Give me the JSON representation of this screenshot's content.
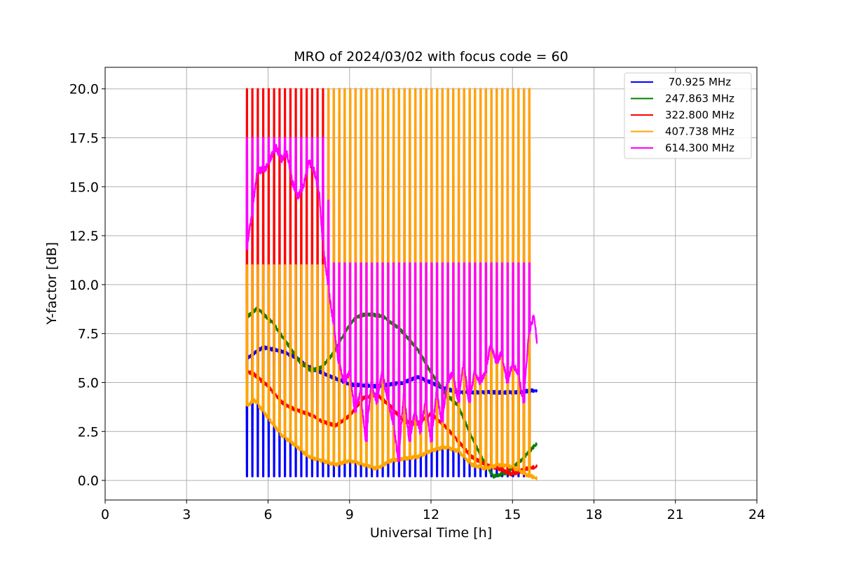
{
  "chart_data": {
    "type": "line",
    "title": "MRO of 2024/03/02 with focus code = 60",
    "xlabel": "Universal Time [h]",
    "ylabel": "Y-factor [dB]",
    "xlim": [
      0,
      24
    ],
    "ylim": [
      -1,
      21.1
    ],
    "x_ticks": [
      0,
      3,
      6,
      9,
      12,
      15,
      18,
      21,
      24
    ],
    "y_ticks": [
      0.0,
      2.5,
      5.0,
      7.5,
      10.0,
      12.5,
      15.0,
      17.5,
      20.0
    ],
    "grid": true,
    "legend_position": "top-right",
    "x_data_range": [
      5.2,
      15.9
    ],
    "switching_period_h": 0.2,
    "series": [
      {
        "name": " 70.925 MHz",
        "color": "#0000ff",
        "baseline": [
          [
            5.2,
            6.2
          ],
          [
            5.8,
            6.8
          ],
          [
            6.5,
            6.6
          ],
          [
            7.0,
            6.3
          ],
          [
            7.5,
            5.8
          ],
          [
            8.0,
            5.5
          ],
          [
            8.5,
            5.2
          ],
          [
            9.0,
            4.9
          ],
          [
            10.0,
            4.8
          ],
          [
            11.0,
            5.0
          ],
          [
            11.5,
            5.3
          ],
          [
            12.0,
            5.0
          ],
          [
            12.5,
            4.7
          ],
          [
            13.0,
            4.5
          ],
          [
            14.0,
            4.5
          ],
          [
            15.0,
            4.5
          ],
          [
            15.9,
            4.6
          ]
        ],
        "spike_low": 0.2,
        "spike_high": null
      },
      {
        "name": "247.863 MHz",
        "color": "#008000",
        "baseline": [
          [
            5.2,
            8.3
          ],
          [
            5.6,
            8.8
          ],
          [
            6.2,
            8.0
          ],
          [
            6.8,
            6.8
          ],
          [
            7.2,
            6.0
          ],
          [
            7.6,
            5.6
          ],
          [
            8.0,
            5.8
          ],
          [
            8.4,
            6.5
          ],
          [
            8.8,
            7.5
          ],
          [
            9.2,
            8.3
          ],
          [
            9.6,
            8.5
          ],
          [
            10.2,
            8.4
          ],
          [
            10.8,
            7.8
          ],
          [
            11.2,
            7.2
          ],
          [
            11.6,
            6.5
          ],
          [
            12.0,
            5.5
          ],
          [
            12.5,
            4.5
          ],
          [
            13.0,
            3.8
          ],
          [
            13.5,
            2.2
          ],
          [
            14.0,
            0.8
          ],
          [
            14.3,
            0.2
          ],
          [
            14.8,
            0.4
          ],
          [
            15.3,
            1.0
          ],
          [
            15.9,
            1.9
          ]
        ],
        "spike_low": null,
        "spike_high": null
      },
      {
        "name": "322.800 MHz",
        "color": "#ff0000",
        "baseline": [
          [
            5.2,
            5.6
          ],
          [
            5.5,
            5.4
          ],
          [
            6.0,
            4.8
          ],
          [
            6.5,
            4.0
          ],
          [
            7.0,
            3.6
          ],
          [
            7.5,
            3.4
          ],
          [
            8.0,
            3.0
          ],
          [
            8.5,
            2.8
          ],
          [
            9.0,
            3.3
          ],
          [
            9.5,
            4.2
          ],
          [
            10.0,
            4.4
          ],
          [
            10.5,
            3.8
          ],
          [
            11.0,
            3.0
          ],
          [
            11.5,
            2.9
          ],
          [
            12.0,
            3.4
          ],
          [
            12.5,
            2.8
          ],
          [
            13.0,
            2.0
          ],
          [
            13.5,
            1.2
          ],
          [
            14.0,
            0.8
          ],
          [
            14.5,
            0.6
          ],
          [
            15.0,
            0.3
          ],
          [
            15.5,
            0.6
          ],
          [
            15.9,
            0.7
          ]
        ],
        "spike_low": null,
        "spike_high": 20.0
      },
      {
        "name": "407.738 MHz",
        "color": "#ffa500",
        "baseline": [
          [
            5.2,
            3.8
          ],
          [
            5.5,
            4.1
          ],
          [
            6.0,
            3.2
          ],
          [
            6.5,
            2.3
          ],
          [
            7.0,
            1.8
          ],
          [
            7.5,
            1.2
          ],
          [
            8.0,
            1.0
          ],
          [
            8.5,
            0.8
          ],
          [
            9.0,
            1.0
          ],
          [
            9.5,
            0.8
          ],
          [
            10.0,
            0.6
          ],
          [
            10.5,
            1.0
          ],
          [
            11.0,
            1.1
          ],
          [
            11.5,
            1.2
          ],
          [
            12.0,
            1.5
          ],
          [
            12.5,
            1.7
          ],
          [
            13.0,
            1.5
          ],
          [
            13.5,
            0.8
          ],
          [
            14.0,
            0.6
          ],
          [
            14.5,
            0.8
          ],
          [
            15.0,
            0.7
          ],
          [
            15.5,
            0.3
          ],
          [
            15.9,
            0.1
          ]
        ],
        "spike_low": null,
        "spike_high_schedule": [
          [
            5.2,
            11.0
          ],
          [
            8.0,
            11.0
          ],
          [
            8.01,
            20.0
          ],
          [
            15.9,
            20.0
          ]
        ]
      },
      {
        "name": "614.300 MHz",
        "color": "#ff00ff",
        "baseline": [
          [
            5.2,
            11.8
          ],
          [
            5.4,
            13.5
          ],
          [
            5.6,
            15.8
          ],
          [
            5.9,
            15.9
          ],
          [
            6.1,
            16.5
          ],
          [
            6.3,
            17.0
          ],
          [
            6.5,
            16.4
          ],
          [
            6.7,
            16.7
          ],
          [
            6.9,
            15.2
          ],
          [
            7.1,
            14.5
          ],
          [
            7.3,
            15.0
          ],
          [
            7.5,
            16.3
          ],
          [
            7.7,
            15.8
          ],
          [
            7.9,
            14.5
          ],
          [
            8.0,
            12.3
          ],
          [
            8.2,
            10.0
          ],
          [
            8.4,
            8.0
          ],
          [
            8.6,
            6.0
          ],
          [
            8.8,
            5.0
          ],
          [
            9.0,
            5.5
          ],
          [
            9.2,
            3.5
          ],
          [
            9.4,
            4.5
          ],
          [
            9.6,
            2.0
          ],
          [
            9.8,
            5.0
          ],
          [
            10.0,
            4.0
          ],
          [
            10.2,
            5.5
          ],
          [
            10.4,
            4.2
          ],
          [
            10.6,
            3.0
          ],
          [
            10.8,
            1.0
          ],
          [
            11.0,
            4.5
          ],
          [
            11.2,
            2.0
          ],
          [
            11.4,
            3.5
          ],
          [
            11.6,
            2.5
          ],
          [
            11.8,
            4.0
          ],
          [
            12.0,
            2.0
          ],
          [
            12.2,
            4.5
          ],
          [
            12.4,
            3.0
          ],
          [
            12.6,
            5.0
          ],
          [
            12.8,
            5.5
          ],
          [
            13.0,
            4.0
          ],
          [
            13.2,
            6.0
          ],
          [
            13.4,
            4.0
          ],
          [
            13.6,
            5.5
          ],
          [
            13.8,
            5.0
          ],
          [
            14.0,
            5.5
          ],
          [
            14.2,
            7.0
          ],
          [
            14.4,
            6.0
          ],
          [
            14.6,
            6.5
          ],
          [
            14.8,
            5.0
          ],
          [
            15.0,
            6.0
          ],
          [
            15.2,
            5.5
          ],
          [
            15.4,
            4.0
          ],
          [
            15.6,
            7.5
          ],
          [
            15.8,
            8.5
          ],
          [
            15.9,
            7.0
          ]
        ],
        "spike_low": null,
        "spike_high_schedule": [
          [
            5.2,
            17.5
          ],
          [
            8.1,
            17.5
          ],
          [
            8.3,
            11.1
          ],
          [
            15.9,
            11.1
          ]
        ]
      }
    ]
  }
}
